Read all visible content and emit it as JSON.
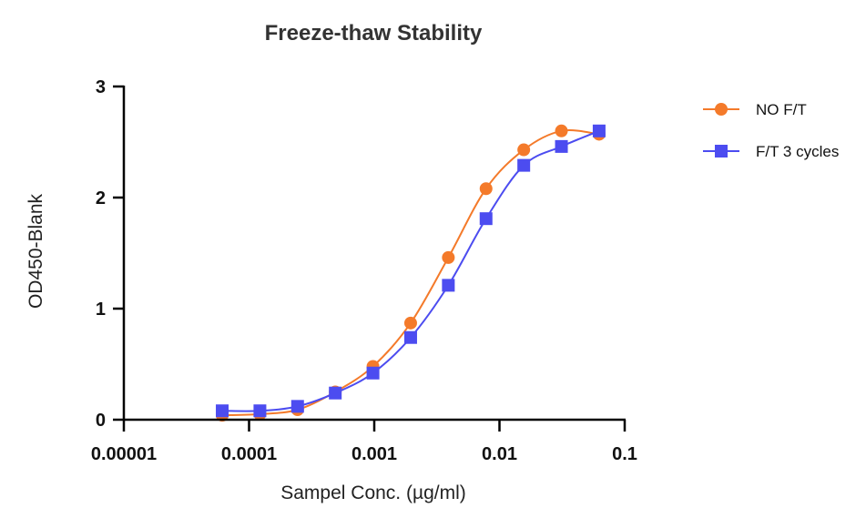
{
  "chart_data": {
    "type": "scatter",
    "title": "Freeze-thaw Stability",
    "xlabel": "Sampel Conc. (µg/ml)",
    "ylabel": "OD450-Blank",
    "xscale": "log",
    "xlim": [
      1e-05,
      0.1
    ],
    "ylim": [
      0,
      3
    ],
    "xticks": [
      1e-05,
      0.0001,
      0.001,
      0.01,
      0.1
    ],
    "xtick_labels": [
      "0.00001",
      "0.0001",
      "0.001",
      "0.01",
      "0.1"
    ],
    "yticks": [
      0,
      1,
      2,
      3
    ],
    "ytick_labels": [
      "0",
      "1",
      "2",
      "3"
    ],
    "legend_position": "top-right",
    "grid": false,
    "series": [
      {
        "name": "NO F/T",
        "color": "#f47a2a",
        "marker": "circle",
        "curve": "sigmoid-fit",
        "points": [
          {
            "x": 6.104e-05,
            "y": 0.04
          },
          {
            "x": 0.0001221,
            "y": 0.05
          },
          {
            "x": 0.0002441,
            "y": 0.09
          },
          {
            "x": 0.0004883,
            "y": 0.25
          },
          {
            "x": 0.0009766,
            "y": 0.48
          },
          {
            "x": 0.001953,
            "y": 0.87
          },
          {
            "x": 0.003906,
            "y": 1.46
          },
          {
            "x": 0.007813,
            "y": 2.08
          },
          {
            "x": 0.01563,
            "y": 2.43
          },
          {
            "x": 0.03125,
            "y": 2.6
          },
          {
            "x": 0.0625,
            "y": 2.57
          }
        ]
      },
      {
        "name": "F/T 3 cycles",
        "color": "#4c4cf0",
        "marker": "square",
        "curve": "sigmoid-fit",
        "points": [
          {
            "x": 6.104e-05,
            "y": 0.08
          },
          {
            "x": 0.0001221,
            "y": 0.08
          },
          {
            "x": 0.0002441,
            "y": 0.12
          },
          {
            "x": 0.0004883,
            "y": 0.24
          },
          {
            "x": 0.0009766,
            "y": 0.42
          },
          {
            "x": 0.001953,
            "y": 0.74
          },
          {
            "x": 0.003906,
            "y": 1.21
          },
          {
            "x": 0.007813,
            "y": 1.81
          },
          {
            "x": 0.01563,
            "y": 2.29
          },
          {
            "x": 0.03125,
            "y": 2.46
          },
          {
            "x": 0.0625,
            "y": 2.6
          }
        ]
      }
    ]
  }
}
